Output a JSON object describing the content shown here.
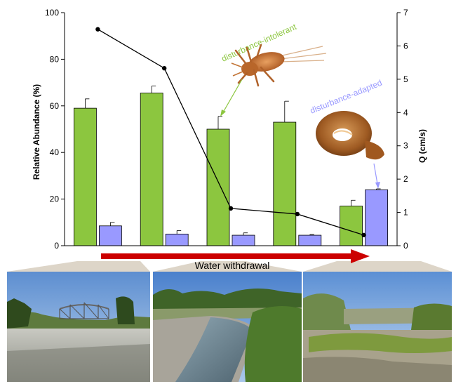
{
  "chart_data": {
    "type": "bar",
    "title": "",
    "categories": [
      "",
      "",
      "",
      "",
      ""
    ],
    "ylabel": "Relative Abundance (%)",
    "y2label": "Q (cm/s)",
    "ylim": [
      0,
      100
    ],
    "y2lim": [
      0,
      7
    ],
    "yticks": [
      "0",
      "20",
      "40",
      "60",
      "80",
      "100"
    ],
    "y2ticks": [
      "0",
      "1",
      "2",
      "3",
      "4",
      "5",
      "6",
      "7"
    ],
    "series": [
      {
        "name": "disturbance-intolerant",
        "type": "bar",
        "color": "#8cc63f",
        "values": [
          59,
          65.5,
          50,
          53,
          17
        ],
        "errors": [
          4,
          3,
          5.5,
          9,
          2.5
        ]
      },
      {
        "name": "disturbance-adapted",
        "type": "bar",
        "color": "#9999ff",
        "values": [
          8.5,
          5,
          4.5,
          4.5,
          24
        ],
        "errors": [
          1.5,
          1.5,
          1,
          0.3,
          0.4
        ]
      },
      {
        "name": "",
        "type": "line",
        "axis": "right",
        "color": "#000000",
        "values": [
          6.5,
          5.33,
          1.12,
          0.95,
          0.32
        ]
      }
    ],
    "legend": "none",
    "grid": false,
    "annotations": {
      "arrow_label": "Water withdrawal",
      "intolerant_label": "disturbance-intolerant",
      "adapted_label": "disturbance-adapted"
    }
  },
  "colors": {
    "intolerant": "#8cc63f",
    "adapted": "#9999ff",
    "arrow": "#cc0000",
    "callout": "#ddd5c8"
  },
  "photos": [
    {
      "name": "photo-river-bridge"
    },
    {
      "name": "photo-river-bank"
    },
    {
      "name": "photo-dry-streambed"
    }
  ]
}
